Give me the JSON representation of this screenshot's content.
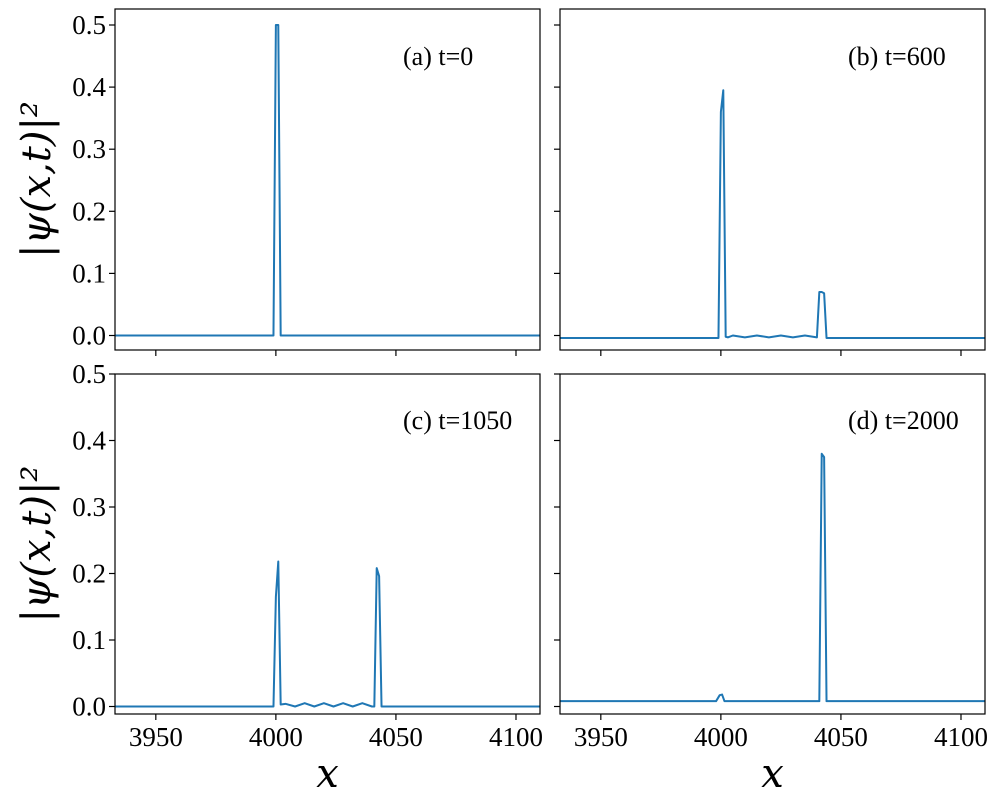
{
  "chart_data": {
    "type": "line",
    "shared": {
      "xlabel": "x",
      "ylabel": "|ψ(x,t)|²",
      "xlim": [
        3933,
        4110
      ],
      "ylim": [
        -0.022,
        0.525
      ],
      "xticks": [
        3950,
        4000,
        4050,
        4100
      ],
      "yticks": [
        0.0,
        0.1,
        0.2,
        0.3,
        0.4,
        0.5
      ],
      "ytick_labels": [
        "0.0",
        "0.1",
        "0.2",
        "0.3",
        "0.4",
        "0.5"
      ],
      "line_color": "#1f77b4",
      "grid": false
    },
    "panels": [
      {
        "annotation": "(a) t=0",
        "x": [
          3933,
          3999.0,
          3999.5,
          4000.0,
          4000.5,
          4001.0,
          4001.5,
          4002.0,
          4110
        ],
        "y": [
          0.0,
          0.0,
          0.25,
          0.5,
          0.5,
          0.5,
          0.25,
          0.0,
          0.0
        ]
      },
      {
        "annotation": "(b) t=600",
        "x": [
          3933,
          3999.0,
          4000.0,
          4001.0,
          4002.0,
          4003.0,
          4005,
          4010,
          4015,
          4020,
          4025,
          4030,
          4035,
          4040,
          4041.0,
          4042.0,
          4043.0,
          4044.0,
          4110
        ],
        "y": [
          -0.004,
          -0.004,
          0.36,
          0.395,
          -0.002,
          -0.003,
          0.0,
          -0.003,
          0.0,
          -0.003,
          0.0,
          -0.003,
          0.0,
          -0.003,
          0.07,
          0.07,
          0.068,
          -0.004,
          -0.004
        ]
      },
      {
        "annotation": "(c) t=1050",
        "x": [
          3933,
          3999.0,
          4000.0,
          4001.0,
          4002.0,
          4004,
          4008,
          4012,
          4016,
          4020,
          4024,
          4028,
          4032,
          4036,
          4040,
          4041.0,
          4042.0,
          4043.0,
          4044.0,
          4110
        ],
        "y": [
          0.0,
          0.0,
          0.165,
          0.218,
          0.003,
          0.004,
          0.0,
          0.005,
          0.0,
          0.005,
          0.0,
          0.005,
          0.0,
          0.005,
          0.0,
          0.0,
          0.208,
          0.196,
          0.0,
          0.0
        ]
      },
      {
        "annotation": "(d) t=2000",
        "x": [
          3933,
          3998.0,
          3999.5,
          4000.5,
          4001.5,
          4041.0,
          4042.0,
          4043.0,
          4044.0,
          4110
        ],
        "y": [
          0.008,
          0.008,
          0.017,
          0.018,
          0.008,
          0.008,
          0.38,
          0.375,
          0.008,
          0.008
        ]
      }
    ]
  }
}
